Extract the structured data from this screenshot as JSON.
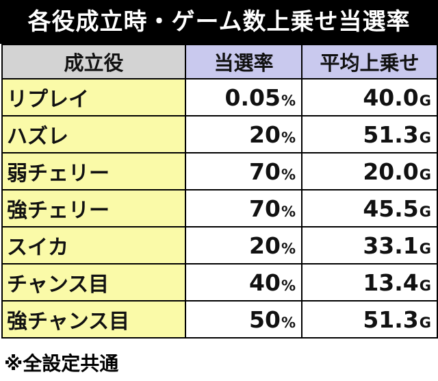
{
  "title": "各役成立時・ゲーム数上乗せ当選率",
  "headers": {
    "role": "成立役",
    "rate": "当選率",
    "avg": "平均上乗せ"
  },
  "rows": [
    {
      "role": "リプレイ",
      "rate": "0.05",
      "rate_unit": "%",
      "avg": "40.0",
      "avg_unit": "G"
    },
    {
      "role": "ハズレ",
      "rate": "20",
      "rate_unit": "%",
      "avg": "51.3",
      "avg_unit": "G"
    },
    {
      "role": "弱チェリー",
      "rate": "70",
      "rate_unit": "%",
      "avg": "20.0",
      "avg_unit": "G"
    },
    {
      "role": "強チェリー",
      "rate": "70",
      "rate_unit": "%",
      "avg": "45.5",
      "avg_unit": "G"
    },
    {
      "role": "スイカ",
      "rate": "20",
      "rate_unit": "%",
      "avg": "33.1",
      "avg_unit": "G"
    },
    {
      "role": "チャンス目",
      "rate": "40",
      "rate_unit": "%",
      "avg": "13.4",
      "avg_unit": "G"
    },
    {
      "role": "強チャンス目",
      "rate": "50",
      "rate_unit": "%",
      "avg": "51.3",
      "avg_unit": "G"
    }
  ],
  "note": "※全設定共通",
  "colors": {
    "title_bg": "#000000",
    "header_role_bg": "#d3d3d3",
    "header_value_bg": "#c9c9ee",
    "role_cell_bg": "#fafaa8"
  }
}
